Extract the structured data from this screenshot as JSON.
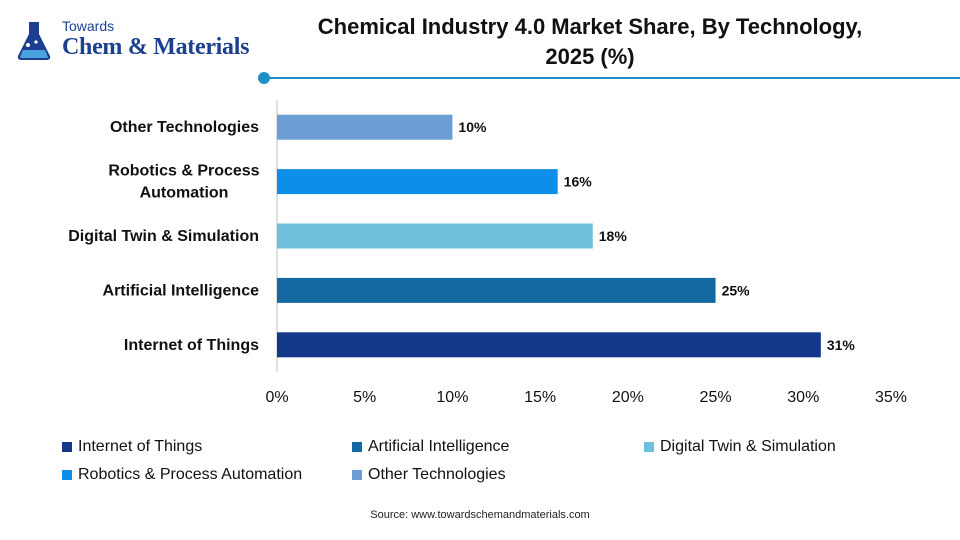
{
  "header": {
    "logo_towards": "Towards",
    "logo_name": "Chem & Materials",
    "title_line1": "Chemical Industry 4.0 Market Share, By Technology,",
    "title_line2": "2025 (%)"
  },
  "colors": {
    "Internet of Things": "#13388a",
    "Artificial Intelligence": "#1569a3",
    "Digital Twin & Simulation": "#6fbfdd",
    "Robotics & Process Automation": "#0d8ee8",
    "Other Technologies": "#6b9fd3",
    "accent": "#1d8fc7"
  },
  "chart_data": {
    "type": "bar",
    "orientation": "horizontal",
    "categories": [
      "Internet of Things",
      "Artificial Intelligence",
      "Digital Twin & Simulation",
      "Robotics & Process Automation",
      "Other Technologies"
    ],
    "category_labels": [
      [
        "Internet of Things"
      ],
      [
        "Artificial Intelligence"
      ],
      [
        "Digital Twin & Simulation"
      ],
      [
        "Robotics & Process",
        "Automation"
      ],
      [
        "Other Technologies"
      ]
    ],
    "values": [
      31,
      25,
      18,
      16,
      10
    ],
    "data_labels": [
      "31%",
      "25%",
      "18%",
      "16%",
      "10%"
    ],
    "xlim": [
      0,
      35
    ],
    "x_ticks": [
      0,
      5,
      10,
      15,
      20,
      25,
      30,
      35
    ],
    "x_tick_labels": [
      "0%",
      "5%",
      "10%",
      "15%",
      "20%",
      "25%",
      "30%",
      "35%"
    ],
    "title": "Chemical Industry 4.0 Market Share, By Technology, 2025 (%)",
    "grid": false,
    "legend_position": "bottom"
  },
  "legend": {
    "items": [
      "Internet of Things",
      "Artificial Intelligence",
      "Digital Twin & Simulation",
      "Robotics & Process Automation",
      "Other Technologies"
    ]
  },
  "footer": {
    "source": "Source: www.towardschemandmaterials.com"
  }
}
